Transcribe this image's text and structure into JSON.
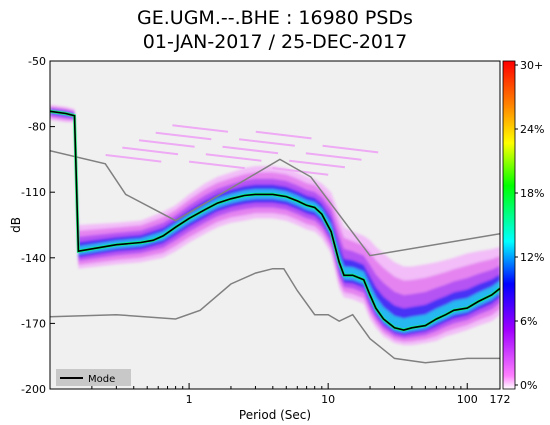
{
  "figure": {
    "title_line1": "GE.UGM.--.BHE : 16980 PSDs",
    "title_line2": "01-JAN-2017 / 25-DEC-2017"
  },
  "chart_data": {
    "type": "heatmap",
    "title": "GE.UGM.--.BHE : 16980 PSDs 01-JAN-2017 / 25-DEC-2017",
    "xlabel": "Period (Sec)",
    "ylabel": "dB",
    "x_scale": "log",
    "xlim": [
      0.1,
      172
    ],
    "ylim": [
      -200,
      -50
    ],
    "x_ticks": [
      {
        "value": 1,
        "label": "1"
      },
      {
        "value": 10,
        "label": "10"
      },
      {
        "value": 100,
        "label": "100"
      },
      {
        "value": 172,
        "label": "172"
      }
    ],
    "y_ticks": [
      -50,
      -80,
      -110,
      -140,
      -170,
      -200
    ],
    "colorbar": {
      "labels": [
        "30+",
        "24%",
        "18%",
        "12%",
        "6%",
        "0%"
      ],
      "colors": [
        "#ff0000",
        "#ff8000",
        "#ffff00",
        "#00ff00",
        "#00ffff",
        "#0000ff",
        "#a000ff",
        "#ff80ff"
      ]
    },
    "legend": {
      "placement": "bottom-left",
      "entries": [
        "Mode"
      ]
    },
    "series": [
      {
        "name": "Mode",
        "color": "#000000",
        "x": [
          0.1,
          0.13,
          0.15,
          0.16,
          0.3,
          0.45,
          0.55,
          0.65,
          0.8,
          1.0,
          1.3,
          1.6,
          2.0,
          2.5,
          3.0,
          4.0,
          5.0,
          6.0,
          7.0,
          8.0,
          9.0,
          10.5,
          12.0,
          13.0,
          15.0,
          18.0,
          20.0,
          22.0,
          25.0,
          30.0,
          35.0,
          40.0,
          50.0,
          60.0,
          70.0,
          80.0,
          100.0,
          120.0,
          150.0,
          172.0
        ],
        "y": [
          -73,
          -74,
          -75,
          -137,
          -134,
          -133,
          -132,
          -130,
          -126,
          -122,
          -118,
          -115,
          -113,
          -111.5,
          -111,
          -111,
          -112,
          -114,
          -116,
          -117,
          -120,
          -128,
          -142,
          -148,
          -148,
          -150,
          -157,
          -163,
          -168,
          -172,
          -173,
          -172,
          -171,
          -168,
          -166,
          -164,
          -163,
          -160,
          -157,
          -154
        ]
      },
      {
        "name": "",
        "color": "#808080",
        "x": [
          0.1,
          0.25,
          0.35,
          0.8,
          4.5,
          7.5,
          20.0,
          172.0
        ],
        "y": [
          -91,
          -97,
          -111,
          -123,
          -95,
          -103,
          -139,
          -129
        ]
      },
      {
        "name": "",
        "color": "#808080",
        "x": [
          0.1,
          0.3,
          0.8,
          1.2,
          2.0,
          3.0,
          4.0,
          4.8,
          6.0,
          8.0,
          10.0,
          12.0,
          15.0,
          20.0,
          30.0,
          50.0,
          100.0,
          172.0
        ],
        "y": [
          -167,
          -166,
          -168,
          -164,
          -152,
          -147,
          -145,
          -145,
          -155,
          -166,
          -166,
          -169,
          -166,
          -177,
          -186,
          -188,
          -186,
          -186
        ]
      }
    ],
    "density_band": {
      "x": [
        0.1,
        0.13,
        0.15,
        0.16,
        0.3,
        0.45,
        0.65,
        0.8,
        1.0,
        1.3,
        1.6,
        2.0,
        2.5,
        3.0,
        4.0,
        5.0,
        6.0,
        7.0,
        8.0,
        9.0,
        10.5,
        12.0,
        13.0,
        15.0,
        18.0,
        20.0,
        22.0,
        25.0,
        30.0,
        35.0,
        40.0,
        50.0,
        60.0,
        70.0,
        80.0,
        100.0,
        120.0,
        150.0,
        172.0
      ],
      "upper": [
        -70,
        -71,
        -72,
        -125,
        -124,
        -123,
        -119,
        -116,
        -111,
        -106,
        -103,
        -101,
        -99,
        -98,
        -98,
        -99,
        -101,
        -103,
        -104,
        -106,
        -110,
        -120,
        -126,
        -128,
        -130,
        -132,
        -135,
        -138,
        -142,
        -144,
        -144,
        -143,
        -142,
        -141,
        -140,
        -138,
        -137,
        -136,
        -135
      ],
      "lower": [
        -77,
        -78,
        -78,
        -145,
        -143,
        -142,
        -140,
        -137,
        -133,
        -129,
        -126,
        -124,
        -123,
        -122,
        -122,
        -123,
        -125,
        -127,
        -128,
        -131,
        -138,
        -154,
        -158,
        -159,
        -161,
        -168,
        -172,
        -176,
        -179,
        -180,
        -180,
        -179,
        -178,
        -176,
        -175,
        -173,
        -171,
        -169,
        -166
      ]
    }
  }
}
